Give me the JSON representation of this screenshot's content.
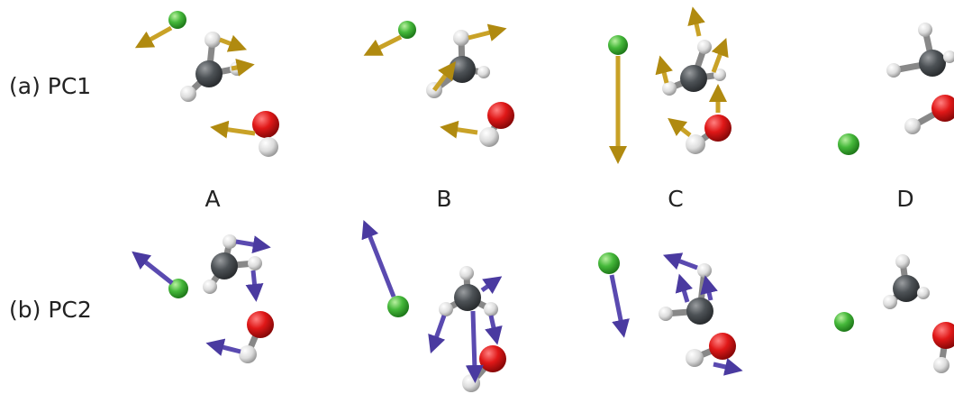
{
  "rows": [
    {
      "label": "(a) PC1"
    },
    {
      "label": "(b) PC2"
    }
  ],
  "columns": [
    "A",
    "B",
    "C",
    "D"
  ]
}
